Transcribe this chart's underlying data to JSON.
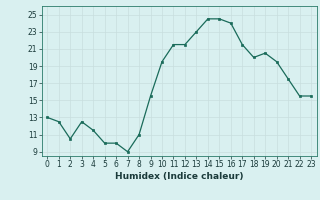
{
  "x": [
    0,
    1,
    2,
    3,
    4,
    5,
    6,
    7,
    8,
    9,
    10,
    11,
    12,
    13,
    14,
    15,
    16,
    17,
    18,
    19,
    20,
    21,
    22,
    23
  ],
  "y": [
    13,
    12.5,
    10.5,
    12.5,
    11.5,
    10,
    10,
    9,
    11,
    15.5,
    19.5,
    21.5,
    21.5,
    23,
    24.5,
    24.5,
    24,
    21.5,
    20,
    20.5,
    19.5,
    17.5,
    15.5,
    15.5
  ],
  "line_color": "#1a6b5a",
  "marker_color": "#1a6b5a",
  "bg_color": "#d9f0f0",
  "grid_color": "#c8dede",
  "xlabel": "Humidex (Indice chaleur)",
  "ylim": [
    8.5,
    26
  ],
  "xlim": [
    -0.5,
    23.5
  ],
  "yticks": [
    9,
    11,
    13,
    15,
    17,
    19,
    21,
    23,
    25
  ],
  "xticks": [
    0,
    1,
    2,
    3,
    4,
    5,
    6,
    7,
    8,
    9,
    10,
    11,
    12,
    13,
    14,
    15,
    16,
    17,
    18,
    19,
    20,
    21,
    22,
    23
  ]
}
